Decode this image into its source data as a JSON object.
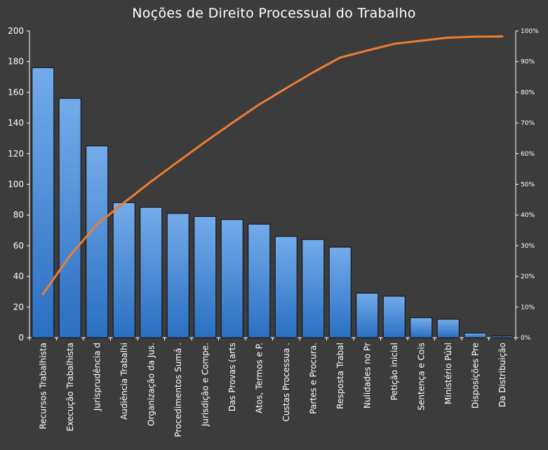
{
  "chart_data": {
    "type": "bar",
    "title": "Noções de Direito Processual do Trabalho",
    "xlabel": "",
    "ylabel": "",
    "categories": [
      "Recursos Trabalhista",
      "Execução Trabalhista",
      "Jurisprudência d",
      "Audiência Trabalhi",
      "Organização da Jus.",
      "Procedimentos Sumá .",
      "Jurisdição e Compe.",
      "Das Provas (arts",
      "Atos, Termos e P.",
      "Custas Processua .",
      "Partes e Procura.",
      "Resposta Trabal",
      "Nulidades no Pr",
      "Petição inicial",
      "Sentença e Cois",
      "Ministério Públ",
      "Disposições Pre",
      "Da Distribuição"
    ],
    "series": [
      {
        "type": "bar",
        "values": [
          176,
          156,
          125,
          88,
          85,
          81,
          79,
          77,
          74,
          66,
          64,
          59,
          29,
          27,
          13,
          12,
          3,
          1
        ]
      },
      {
        "type": "line",
        "axis": "right",
        "values": [
          14.2,
          26.8,
          36.9,
          44.0,
          50.9,
          57.4,
          63.8,
          70.0,
          76.0,
          81.3,
          86.5,
          91.3,
          93.6,
          95.8,
          96.8,
          97.8,
          98.1,
          98.2
        ]
      }
    ],
    "ylim": [
      0,
      200
    ],
    "y_ticks": [
      "0",
      "20",
      "40",
      "60",
      "80",
      "100",
      "120",
      "140",
      "160",
      "180",
      "200"
    ],
    "y2lim": [
      0,
      100
    ],
    "y2_ticks": [
      "0%",
      "10%",
      "20%",
      "30%",
      "40%",
      "50%",
      "60%",
      "70%",
      "80%",
      "90%",
      "100%"
    ],
    "grid": false,
    "colors": {
      "background": "#3c3c3c",
      "bar_top": "#74acea",
      "bar_bottom": "#2a6fc2",
      "line": "#ed7d31",
      "axis": "#ffffff"
    }
  }
}
